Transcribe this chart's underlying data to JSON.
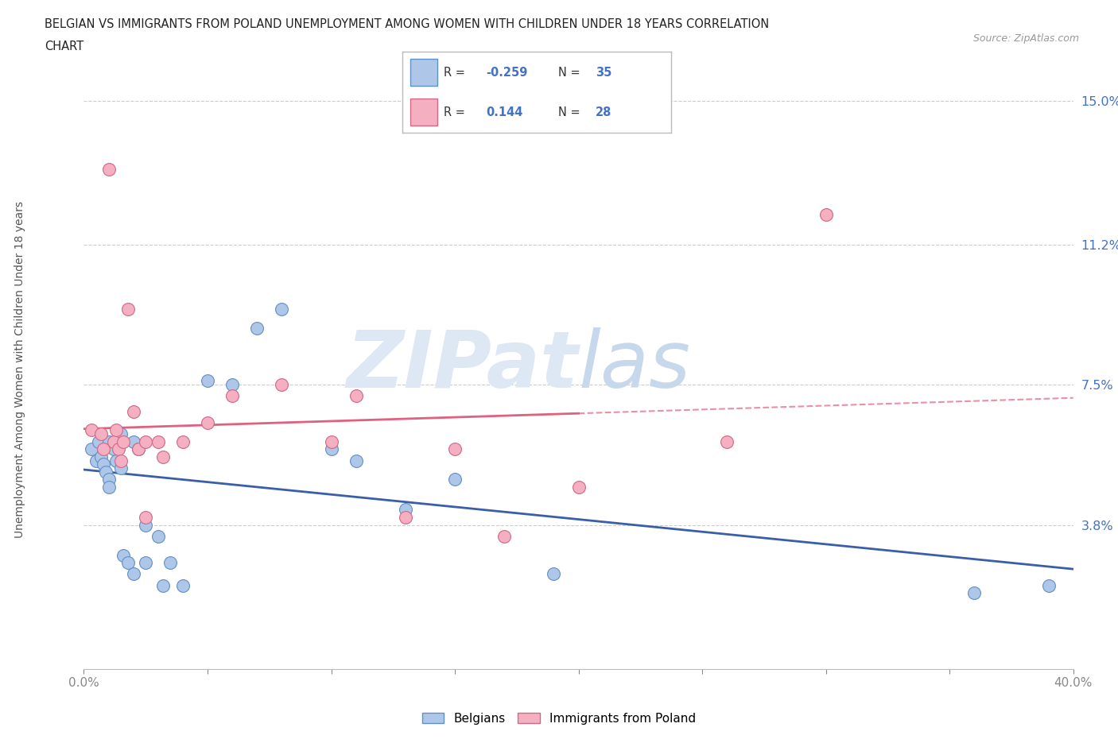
{
  "title_line1": "BELGIAN VS IMMIGRANTS FROM POLAND UNEMPLOYMENT AMONG WOMEN WITH CHILDREN UNDER 18 YEARS CORRELATION",
  "title_line2": "CHART",
  "source_text": "Source: ZipAtlas.com",
  "ylabel": "Unemployment Among Women with Children Under 18 years",
  "xlim": [
    0.0,
    0.4
  ],
  "ylim": [
    0.0,
    0.16
  ],
  "ytick_vals": [
    0.038,
    0.075,
    0.112,
    0.15
  ],
  "ytick_labels": [
    "3.8%",
    "7.5%",
    "11.2%",
    "15.0%"
  ],
  "xtick_vals": [
    0.0,
    0.05,
    0.1,
    0.15,
    0.2,
    0.25,
    0.3,
    0.35,
    0.4
  ],
  "xtick_labels": [
    "0.0%",
    "",
    "",
    "",
    "",
    "",
    "",
    "",
    "40.0%"
  ],
  "hline_vals": [
    0.038,
    0.075,
    0.112,
    0.15
  ],
  "belgian_R": "-0.259",
  "belgian_N": "35",
  "poland_R": "0.144",
  "poland_N": "28",
  "belgian_color": "#aec6e8",
  "poland_color": "#f4afc0",
  "belgian_line_color": "#3a5fa8",
  "poland_line_color": "#e06080",
  "watermark_color": "#dde8f4",
  "legend_label1": "Belgians",
  "legend_label2": "Immigrants from Poland",
  "belgians_x": [
    0.003,
    0.005,
    0.006,
    0.007,
    0.008,
    0.009,
    0.01,
    0.01,
    0.01,
    0.012,
    0.013,
    0.015,
    0.015,
    0.016,
    0.018,
    0.02,
    0.02,
    0.022,
    0.025,
    0.025,
    0.03,
    0.032,
    0.035,
    0.04,
    0.05,
    0.06,
    0.07,
    0.08,
    0.1,
    0.11,
    0.13,
    0.15,
    0.19,
    0.36,
    0.39
  ],
  "belgians_y": [
    0.058,
    0.055,
    0.06,
    0.056,
    0.054,
    0.052,
    0.06,
    0.05,
    0.048,
    0.058,
    0.055,
    0.053,
    0.062,
    0.03,
    0.028,
    0.06,
    0.025,
    0.058,
    0.038,
    0.028,
    0.035,
    0.022,
    0.028,
    0.022,
    0.076,
    0.075,
    0.09,
    0.095,
    0.058,
    0.055,
    0.042,
    0.05,
    0.025,
    0.02,
    0.022
  ],
  "poland_x": [
    0.003,
    0.007,
    0.008,
    0.01,
    0.012,
    0.013,
    0.014,
    0.015,
    0.016,
    0.018,
    0.02,
    0.022,
    0.025,
    0.025,
    0.03,
    0.032,
    0.04,
    0.05,
    0.06,
    0.08,
    0.1,
    0.11,
    0.13,
    0.15,
    0.17,
    0.2,
    0.26,
    0.3
  ],
  "poland_y": [
    0.063,
    0.062,
    0.058,
    0.132,
    0.06,
    0.063,
    0.058,
    0.055,
    0.06,
    0.095,
    0.068,
    0.058,
    0.06,
    0.04,
    0.06,
    0.056,
    0.06,
    0.065,
    0.072,
    0.075,
    0.06,
    0.072,
    0.04,
    0.058,
    0.035,
    0.048,
    0.06,
    0.12
  ]
}
